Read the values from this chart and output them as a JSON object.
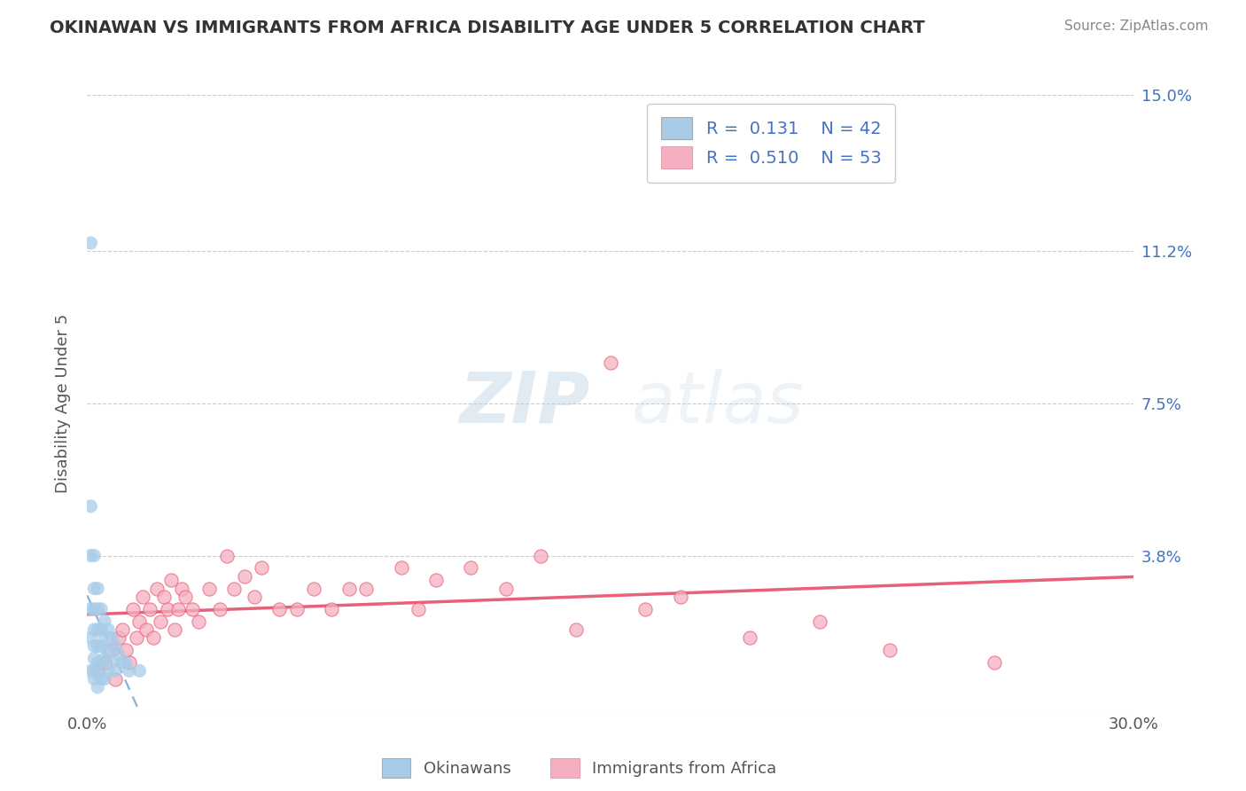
{
  "title": "OKINAWAN VS IMMIGRANTS FROM AFRICA DISABILITY AGE UNDER 5 CORRELATION CHART",
  "source": "Source: ZipAtlas.com",
  "ylabel": "Disability Age Under 5",
  "xlabel": "",
  "xlim": [
    0.0,
    0.3
  ],
  "ylim": [
    0.0,
    0.15
  ],
  "xtick_labels": [
    "0.0%",
    "30.0%"
  ],
  "ytick_vals": [
    0.0,
    0.038,
    0.075,
    0.112,
    0.15
  ],
  "ytick_labels": [
    "",
    "3.8%",
    "7.5%",
    "11.2%",
    "15.0%"
  ],
  "legend_r1": "R =  0.131",
  "legend_n1": "N = 42",
  "legend_r2": "R =  0.510",
  "legend_n2": "N = 53",
  "series1_name": "Okinawans",
  "series2_name": "Immigrants from Africa",
  "series1_color": "#a8cce8",
  "series2_color": "#f4afc0",
  "series1_trend_color": "#7aafd4",
  "series2_trend_color": "#e8607a",
  "background_color": "#ffffff",
  "okinawan_x": [
    0.001,
    0.001,
    0.001,
    0.001,
    0.001,
    0.001,
    0.002,
    0.002,
    0.002,
    0.002,
    0.002,
    0.002,
    0.002,
    0.002,
    0.003,
    0.003,
    0.003,
    0.003,
    0.003,
    0.003,
    0.003,
    0.004,
    0.004,
    0.004,
    0.004,
    0.004,
    0.005,
    0.005,
    0.005,
    0.005,
    0.006,
    0.006,
    0.006,
    0.007,
    0.007,
    0.008,
    0.008,
    0.009,
    0.01,
    0.011,
    0.012,
    0.015
  ],
  "okinawan_y": [
    0.114,
    0.05,
    0.038,
    0.025,
    0.018,
    0.01,
    0.038,
    0.03,
    0.025,
    0.02,
    0.016,
    0.013,
    0.01,
    0.008,
    0.03,
    0.025,
    0.02,
    0.016,
    0.012,
    0.009,
    0.006,
    0.025,
    0.02,
    0.016,
    0.012,
    0.008,
    0.022,
    0.018,
    0.013,
    0.008,
    0.02,
    0.015,
    0.01,
    0.018,
    0.012,
    0.016,
    0.01,
    0.014,
    0.012,
    0.012,
    0.01,
    0.01
  ],
  "africa_x": [
    0.003,
    0.005,
    0.007,
    0.008,
    0.009,
    0.01,
    0.011,
    0.012,
    0.013,
    0.014,
    0.015,
    0.016,
    0.017,
    0.018,
    0.019,
    0.02,
    0.021,
    0.022,
    0.023,
    0.024,
    0.025,
    0.026,
    0.027,
    0.028,
    0.03,
    0.032,
    0.035,
    0.038,
    0.04,
    0.042,
    0.045,
    0.048,
    0.05,
    0.055,
    0.06,
    0.065,
    0.07,
    0.075,
    0.08,
    0.09,
    0.095,
    0.1,
    0.11,
    0.12,
    0.13,
    0.14,
    0.15,
    0.16,
    0.17,
    0.19,
    0.21,
    0.23,
    0.26
  ],
  "africa_y": [
    0.01,
    0.012,
    0.015,
    0.008,
    0.018,
    0.02,
    0.015,
    0.012,
    0.025,
    0.018,
    0.022,
    0.028,
    0.02,
    0.025,
    0.018,
    0.03,
    0.022,
    0.028,
    0.025,
    0.032,
    0.02,
    0.025,
    0.03,
    0.028,
    0.025,
    0.022,
    0.03,
    0.025,
    0.038,
    0.03,
    0.033,
    0.028,
    0.035,
    0.025,
    0.025,
    0.03,
    0.025,
    0.03,
    0.03,
    0.035,
    0.025,
    0.032,
    0.035,
    0.03,
    0.038,
    0.02,
    0.085,
    0.025,
    0.028,
    0.018,
    0.022,
    0.015,
    0.012
  ]
}
